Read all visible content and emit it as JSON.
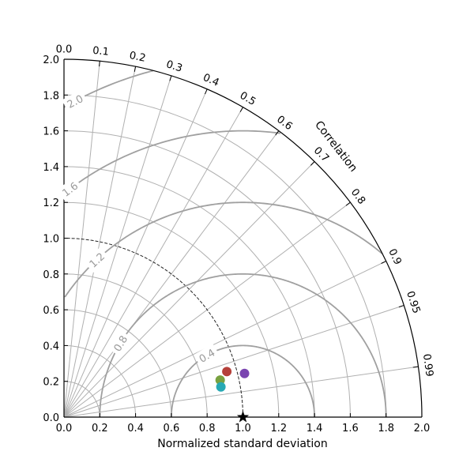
{
  "chart_data": {
    "type": "scatter",
    "title": "",
    "xlabel": "Normalized standard deviation",
    "ylabel": "",
    "arc_label": "Correlation",
    "std_range": [
      0,
      2
    ],
    "std_ticks": [
      "0.0",
      "0.2",
      "0.4",
      "0.6",
      "0.8",
      "1.0",
      "1.2",
      "1.4",
      "1.6",
      "1.8",
      "2.0"
    ],
    "correlation_ticks": [
      "0.0",
      "0.1",
      "0.2",
      "0.3",
      "0.4",
      "0.5",
      "0.6",
      "0.7",
      "0.8",
      "0.9",
      "0.95",
      "0.99"
    ],
    "std_gridlines": [
      0.2,
      0.4,
      0.6,
      0.8,
      1.0,
      1.2,
      1.4,
      1.6,
      1.8
    ],
    "rms_contours": [
      "0.4",
      "0.8",
      "1.2",
      "1.6",
      "2.0"
    ],
    "reference": {
      "std": 1.0,
      "correlation": 1.0,
      "marker": "star"
    },
    "points": [
      {
        "std": 0.945,
        "correlation": 0.963,
        "color": "#b5403a"
      },
      {
        "std": 0.897,
        "correlation": 0.973,
        "color": "#79a140"
      },
      {
        "std": 0.893,
        "correlation": 0.982,
        "color": "#27a9b4"
      },
      {
        "std": 1.038,
        "correlation": 0.972,
        "color": "#7a45b0"
      }
    ],
    "grid": true,
    "colors": {
      "grid": "#b0b0b0",
      "contour": "#a0a0a0",
      "rms_label": "#9a9a9a",
      "axis": "#000000"
    }
  }
}
